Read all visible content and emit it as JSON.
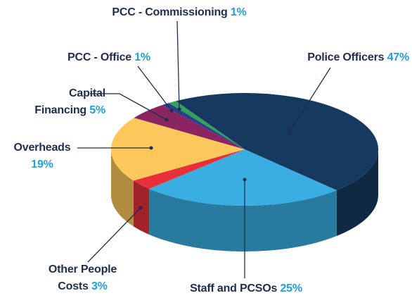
{
  "chart_data": {
    "type": "pie",
    "categories": [
      "Police Officers",
      "Staff and PCSOs",
      "Other People Costs",
      "Overheads",
      "Capital Financing",
      "PCC - Office",
      "PCC - Commissioning"
    ],
    "values": [
      47,
      25,
      3,
      19,
      5,
      1,
      1
    ],
    "value_labels": [
      "47%",
      "25%",
      "3%",
      "19%",
      "5%",
      "1%",
      "1%"
    ],
    "colors": [
      "#163a5f",
      "#3aaee3",
      "#e8303a",
      "#fcc85c",
      "#8b2560",
      "#2b3e8c",
      "#2fa35a"
    ]
  }
}
